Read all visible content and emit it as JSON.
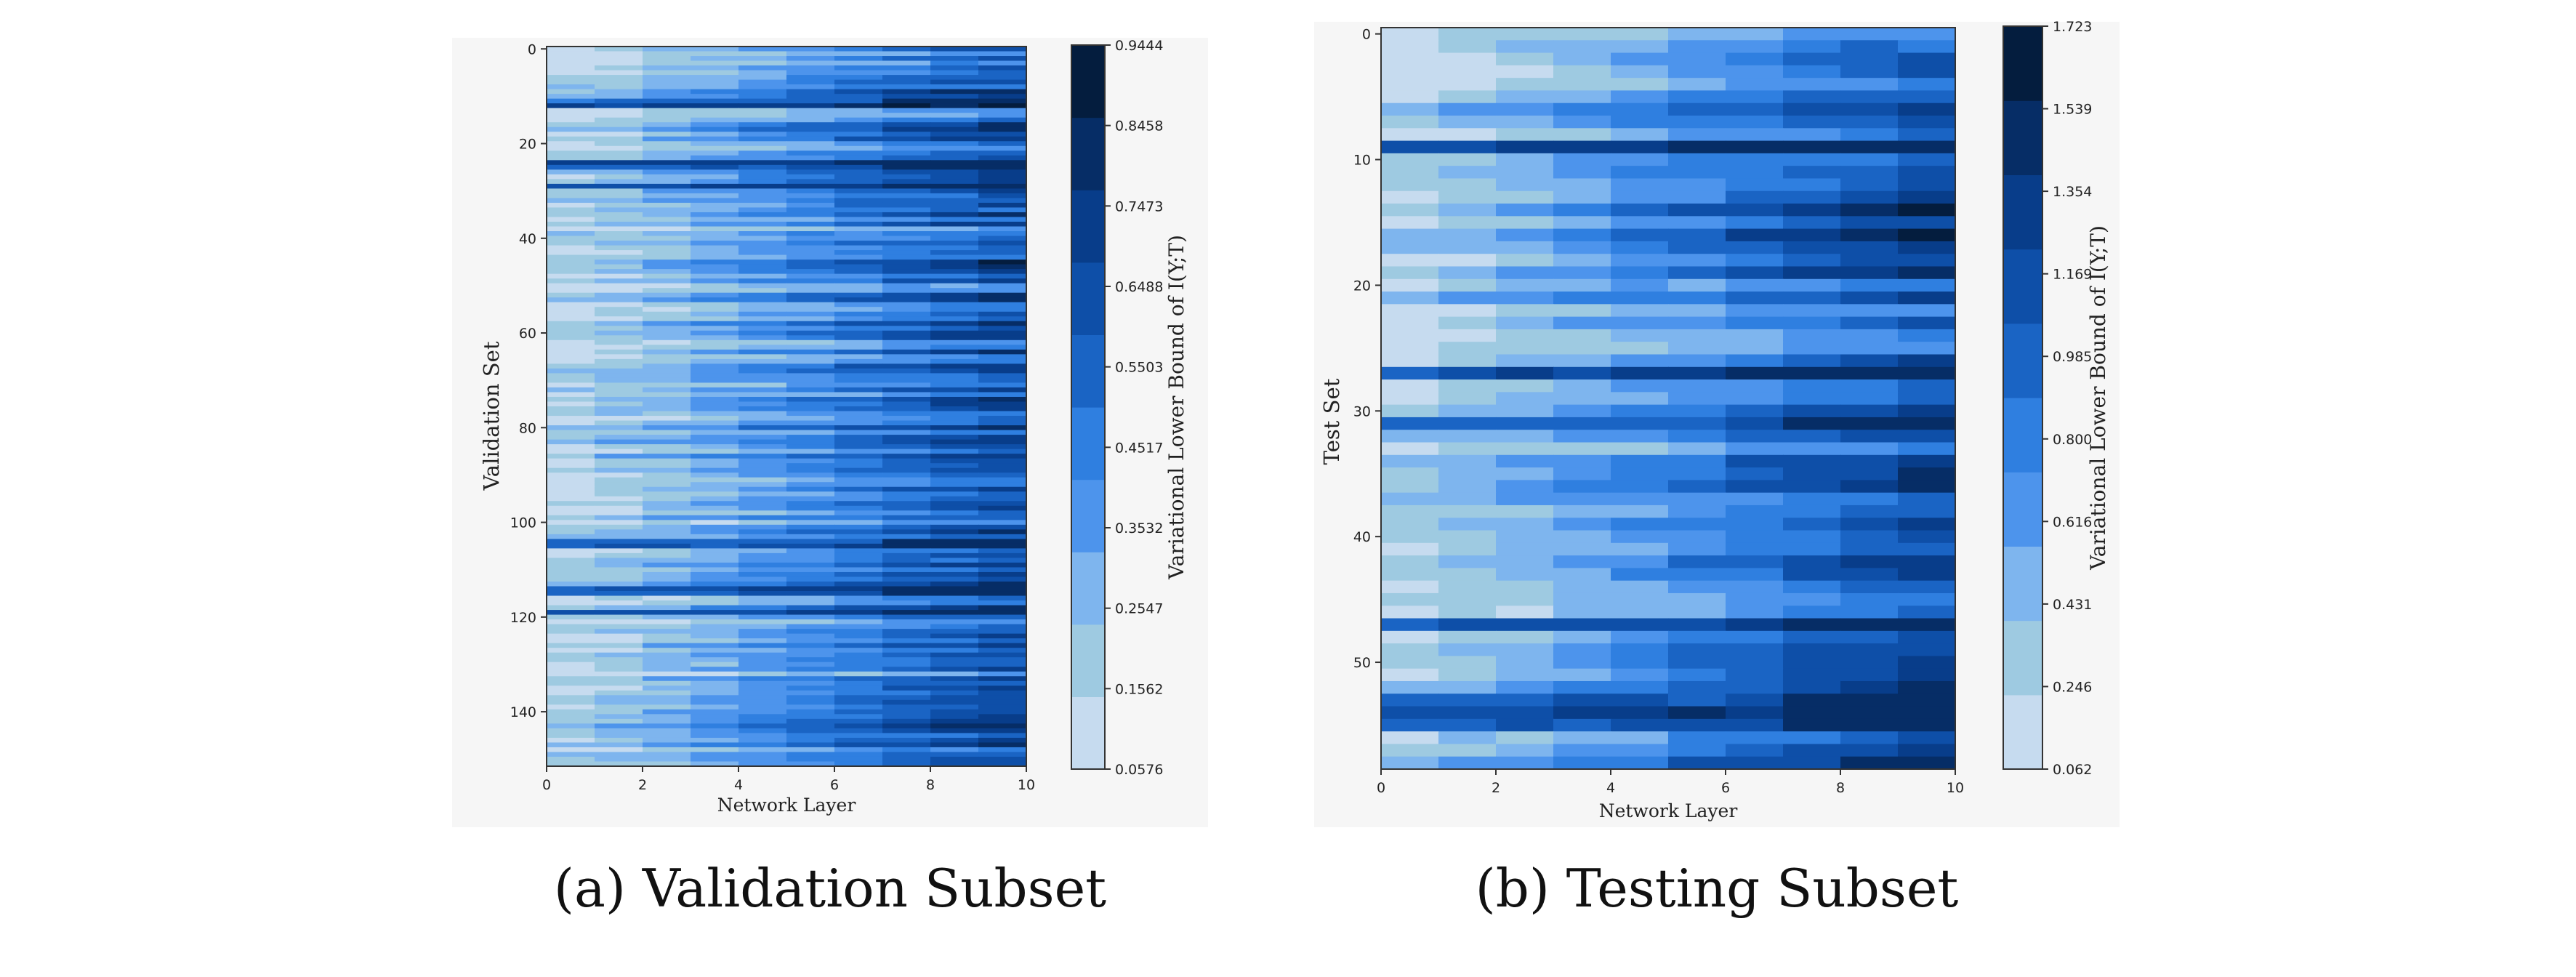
{
  "captions": {
    "a": "(a) Validation Subset",
    "b": "(b) Testing Subset"
  },
  "colors": {
    "scale": [
      "#c6dbef",
      "#9ecae1",
      "#7eb5ee",
      "#4d94ec",
      "#2f7fe0",
      "#1a64c4",
      "#0e4fa8",
      "#083d8a",
      "#062d66",
      "#041d3e"
    ]
  },
  "chart_data": [
    {
      "type": "heatmap",
      "title": "",
      "xlabel": "Network Layer",
      "ylabel": "Validation Set",
      "xlim": [
        0,
        10
      ],
      "ylim": [
        0,
        152
      ],
      "x_ticks": [
        "0",
        "2",
        "4",
        "6",
        "8",
        "10"
      ],
      "y_ticks": [
        "0",
        "20",
        "40",
        "60",
        "80",
        "100",
        "120",
        "140"
      ],
      "colorbar_label": "Variational Lower Bound of I(Y;T)",
      "colorbar_ticks": [
        "0.9444",
        "0.8458",
        "0.7473",
        "0.6488",
        "0.5503",
        "0.4517",
        "0.3532",
        "0.2547",
        "0.1562",
        "0.0576"
      ],
      "value_range": [
        0.0576,
        0.9444
      ],
      "rows": 152,
      "columns": 10,
      "dark_rows": [
        11,
        12,
        24,
        25,
        29,
        104,
        105,
        114,
        115,
        119
      ],
      "row_pattern": "each row increases from low values at layer 0 to high values at layer 10"
    },
    {
      "type": "heatmap",
      "title": "",
      "xlabel": "Network Layer",
      "ylabel": "Test Set",
      "xlim": [
        0,
        10
      ],
      "ylim": [
        0,
        59
      ],
      "x_ticks": [
        "0",
        "2",
        "4",
        "6",
        "8",
        "10"
      ],
      "y_ticks": [
        "0",
        "10",
        "20",
        "30",
        "40",
        "50"
      ],
      "colorbar_label": "Variational Lower Bound of I(Y;T)",
      "colorbar_ticks": [
        "1.723",
        "1.539",
        "1.354",
        "1.169",
        "0.985",
        "0.800",
        "0.616",
        "0.431",
        "0.246",
        "0.062"
      ],
      "value_range": [
        0.062,
        1.723
      ],
      "rows": 59,
      "columns": 10,
      "dark_rows": [
        9,
        27,
        31,
        47,
        53,
        54,
        55
      ],
      "row_pattern": "each row increases from low values at layer 0 to high values at layer 10"
    }
  ]
}
